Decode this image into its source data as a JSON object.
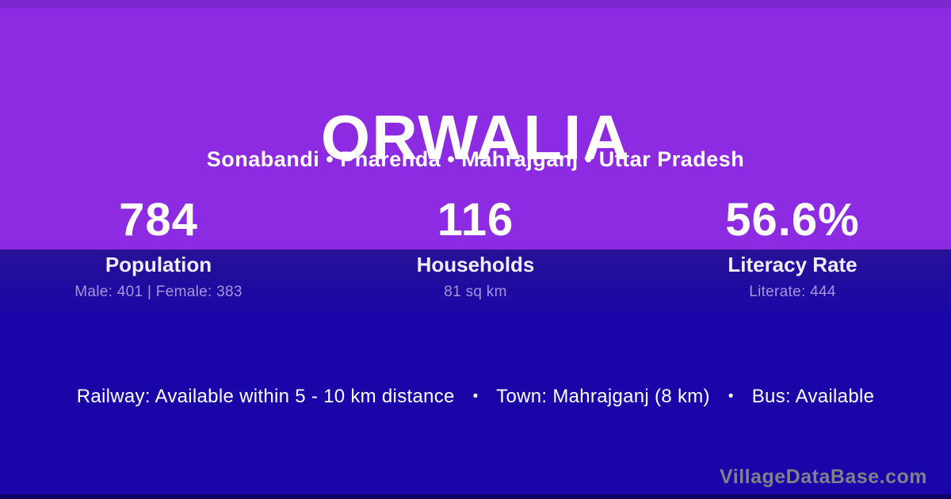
{
  "village": {
    "title": "ORWALIA",
    "subtitle": "Sonabandi • Pharenda • Mahrajganj • Uttar Pradesh"
  },
  "stats": [
    {
      "value": "784",
      "label": "Population",
      "detail": "Male: 401 | Female: 383"
    },
    {
      "value": "116",
      "label": "Households",
      "detail": "81 sq km"
    },
    {
      "value": "56.6%",
      "label": "Literacy Rate",
      "detail": "Literate: 444"
    }
  ],
  "info": {
    "separator": "•",
    "items": [
      "Railway: Available within 5 - 10 km distance",
      "Town: Mahrajganj (8 km)",
      "Bus: Available"
    ]
  },
  "watermark": "VillageDataBase.com",
  "colors": {
    "purple_main": "#8C2BE2",
    "purple_top_strip": "#7D27CE",
    "indigo_main": "#1A05A8",
    "indigo_top": "#261297",
    "bottom_strip": "#0E0263",
    "text_white": "#FFFFFF",
    "stat_detail": "#A495DB",
    "watermark_gray": "#808088"
  }
}
